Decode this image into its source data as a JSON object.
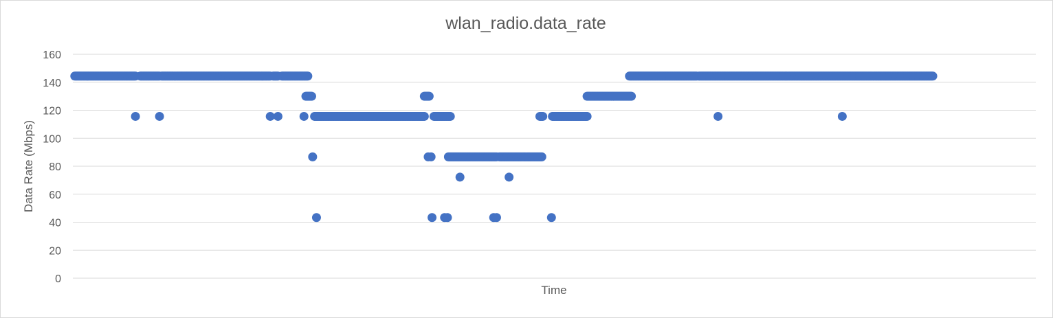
{
  "chart_data": {
    "type": "scatter",
    "title": "wlan_radio.data_rate",
    "xlabel": "Time",
    "ylabel": "Data Rate (Mbps)",
    "ylim": [
      0,
      160
    ],
    "yticks": [
      0,
      20,
      40,
      60,
      80,
      100,
      120,
      140,
      160
    ],
    "xlim": [
      0,
      1000
    ],
    "grid": true,
    "legend": "none",
    "marker_color": "#4472c4",
    "grid_color": "#d9d9d9",
    "series": [
      {
        "runs": [
          {
            "x_start": 2,
            "x_end": 65,
            "y": 144.4
          },
          {
            "x_start": 70,
            "x_end": 90,
            "y": 144.4
          },
          {
            "x_start": 92,
            "x_end": 205,
            "y": 144.4
          },
          {
            "x_start": 208,
            "x_end": 213,
            "y": 144.4
          },
          {
            "x_start": 217,
            "x_end": 244,
            "y": 144.4
          },
          {
            "x_start": 242,
            "x_end": 248,
            "y": 130
          },
          {
            "x_start": 251,
            "x_end": 365,
            "y": 115.6
          },
          {
            "x_start": 365,
            "x_end": 370,
            "y": 130
          },
          {
            "x_start": 375,
            "x_end": 392,
            "y": 115.6
          },
          {
            "x_start": 390,
            "x_end": 440,
            "y": 86.7
          },
          {
            "x_start": 443,
            "x_end": 487,
            "y": 86.7
          },
          {
            "x_start": 485,
            "x_end": 488,
            "y": 115.6
          },
          {
            "x_start": 498,
            "x_end": 534,
            "y": 115.6
          },
          {
            "x_start": 534,
            "x_end": 580,
            "y": 130
          },
          {
            "x_start": 578,
            "x_end": 648,
            "y": 144.4
          },
          {
            "x_start": 650,
            "x_end": 779,
            "y": 144.4
          },
          {
            "x_start": 780,
            "x_end": 893,
            "y": 144.4
          }
        ],
        "points": [
          {
            "x": 65,
            "y": 115.6
          },
          {
            "x": 90,
            "y": 115.6
          },
          {
            "x": 205,
            "y": 115.6
          },
          {
            "x": 213,
            "y": 115.6
          },
          {
            "x": 240,
            "y": 115.6
          },
          {
            "x": 249,
            "y": 86.7
          },
          {
            "x": 253,
            "y": 43.3
          },
          {
            "x": 369,
            "y": 86.7
          },
          {
            "x": 372,
            "y": 86.7
          },
          {
            "x": 373,
            "y": 43.3
          },
          {
            "x": 386,
            "y": 43.3
          },
          {
            "x": 389,
            "y": 43.3
          },
          {
            "x": 402,
            "y": 72.2
          },
          {
            "x": 437,
            "y": 43.3
          },
          {
            "x": 440,
            "y": 43.3
          },
          {
            "x": 453,
            "y": 72.2
          },
          {
            "x": 497,
            "y": 43.3
          },
          {
            "x": 670,
            "y": 115.6
          },
          {
            "x": 799,
            "y": 115.6
          }
        ]
      }
    ]
  }
}
